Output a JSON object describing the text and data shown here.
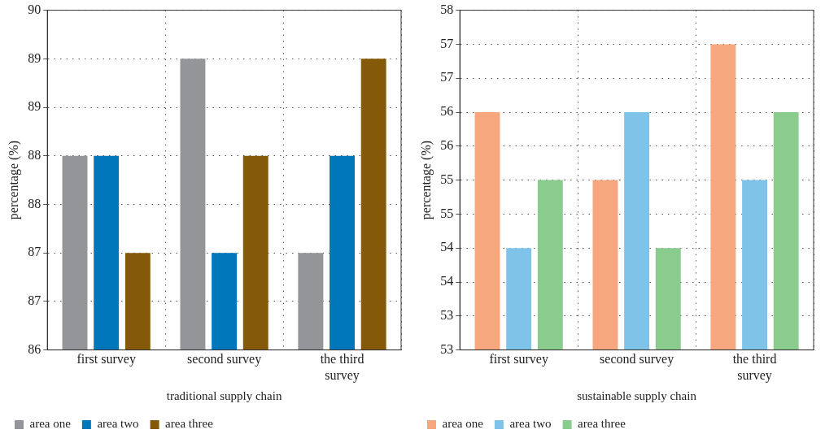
{
  "chart_data": [
    {
      "type": "bar",
      "xlabel": "traditional supply chain",
      "ylabel": "percentage (%)",
      "categories": [
        "first survey",
        "second survey",
        "the third survey"
      ],
      "series": [
        {
          "name": "area one",
          "color": "#939598",
          "values": [
            88,
            89,
            87
          ]
        },
        {
          "name": "area two",
          "color": "#0077bb",
          "values": [
            88,
            87,
            88
          ]
        },
        {
          "name": "area three",
          "color": "#845a08",
          "values": [
            87,
            88,
            89
          ]
        }
      ],
      "ylim": [
        86,
        89.5
      ],
      "yticks": [
        86,
        {
          "value": 86.5,
          "label": "87"
        },
        87,
        {
          "value": 87.5,
          "label": "88"
        },
        88,
        {
          "value": 88.5,
          "label": "89"
        },
        89,
        {
          "value": 89.5,
          "label": "90"
        }
      ],
      "grid": true,
      "legend": "bottom left"
    },
    {
      "type": "bar",
      "xlabel": "sustainable supply chain",
      "ylabel": "percentage (%)",
      "categories": [
        "first survey",
        "second survey",
        "the third survey"
      ],
      "series": [
        {
          "name": "area one",
          "color": "#f7a77e",
          "values": [
            56,
            55,
            57
          ]
        },
        {
          "name": "area two",
          "color": "#7fc4e8",
          "values": [
            54,
            56,
            55
          ]
        },
        {
          "name": "area three",
          "color": "#8acb8e",
          "values": [
            55,
            54,
            56
          ]
        }
      ],
      "ylim": [
        52.5,
        57.5
      ],
      "yticks": [
        {
          "value": 52.5,
          "label": "53"
        },
        53,
        {
          "value": 53.5,
          "label": "54"
        },
        54,
        {
          "value": 54.5,
          "label": "55"
        },
        55,
        {
          "value": 55.5,
          "label": "56"
        },
        56,
        {
          "value": 56.5,
          "label": "57"
        },
        57,
        {
          "value": 57.5,
          "label": "58"
        }
      ],
      "grid": true,
      "legend": "bottom left"
    }
  ]
}
